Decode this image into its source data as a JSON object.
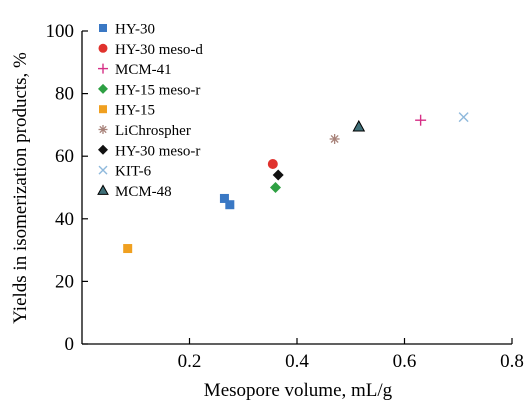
{
  "chart_data": {
    "type": "scatter",
    "xlabel": "Mesopore volume, mL/g",
    "ylabel": "Yields in isomerization products, %",
    "xlim": [
      0,
      0.8
    ],
    "ylim": [
      0,
      100
    ],
    "xticks": [
      0.2,
      0.4,
      0.6,
      0.8
    ],
    "xtick_labels": [
      "0.2",
      "0.4",
      "0.6",
      "0.8"
    ],
    "yticks": [
      0,
      20,
      40,
      60,
      80,
      100
    ],
    "ytick_labels": [
      "0",
      "20",
      "40",
      "60",
      "80",
      "100"
    ],
    "grid": false,
    "legend_position": "top-left",
    "series": [
      {
        "name": "HY-30",
        "marker": "square",
        "color": "#3a78c4",
        "points": [
          {
            "x": 0.265,
            "y": 46.5
          },
          {
            "x": 0.275,
            "y": 44.5
          }
        ]
      },
      {
        "name": "HY-30 meso-d",
        "marker": "circle",
        "color": "#e0322d",
        "points": [
          {
            "x": 0.355,
            "y": 57.5
          }
        ]
      },
      {
        "name": "MCM-41",
        "marker": "plus",
        "color": "#d62f86",
        "points": [
          {
            "x": 0.63,
            "y": 71.5
          }
        ]
      },
      {
        "name": "HY-15 meso-r",
        "marker": "diamond",
        "color": "#2ea043",
        "points": [
          {
            "x": 0.36,
            "y": 50.0
          }
        ]
      },
      {
        "name": "HY-15",
        "marker": "square",
        "color": "#f0a020",
        "points": [
          {
            "x": 0.085,
            "y": 30.5
          }
        ]
      },
      {
        "name": "LiChrospher",
        "marker": "asterisk",
        "color": "#a8837a",
        "points": [
          {
            "x": 0.47,
            "y": 65.5
          }
        ]
      },
      {
        "name": "HY-30 meso-r",
        "marker": "diamond",
        "color": "#111111",
        "points": [
          {
            "x": 0.365,
            "y": 54.0
          }
        ]
      },
      {
        "name": "KIT-6",
        "marker": "cross",
        "color": "#8fb9dc",
        "points": [
          {
            "x": 0.71,
            "y": 72.5
          }
        ]
      },
      {
        "name": "MCM-48",
        "marker": "triangle",
        "color": "#3f6f78",
        "points": [
          {
            "x": 0.515,
            "y": 69.5
          }
        ]
      }
    ]
  }
}
